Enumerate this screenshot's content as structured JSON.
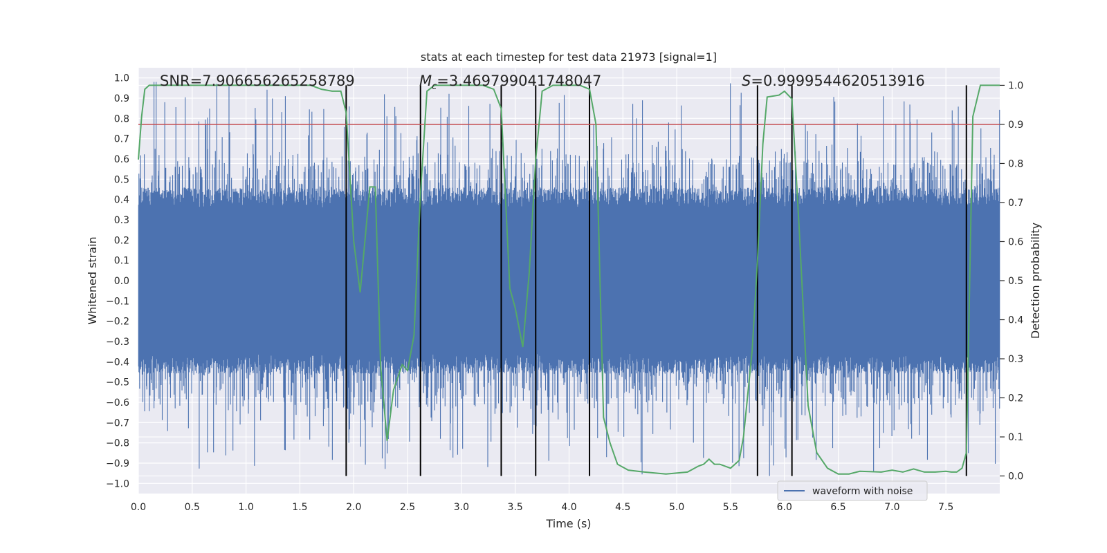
{
  "chart_data": {
    "type": "line",
    "title": "stats at each timestep for test data 21973 [signal=1]",
    "xlabel": "Time (s)",
    "ylabel": "Whitened strain",
    "y2label": "Detection probability",
    "xlim": [
      0.0,
      8.0
    ],
    "ylim": [
      -1.05,
      1.05
    ],
    "y2lim": [
      -0.045,
      1.045
    ],
    "xticks": [
      "0.0",
      "0.5",
      "1.0",
      "1.5",
      "2.0",
      "2.5",
      "3.0",
      "3.5",
      "4.0",
      "4.5",
      "5.0",
      "5.5",
      "6.0",
      "6.5",
      "7.0",
      "7.5"
    ],
    "xtick_values": [
      0.0,
      0.5,
      1.0,
      1.5,
      2.0,
      2.5,
      3.0,
      3.5,
      4.0,
      4.5,
      5.0,
      5.5,
      6.0,
      6.5,
      7.0,
      7.5
    ],
    "yticks": [
      "1.0",
      "0.9",
      "0.8",
      "0.7",
      "0.6",
      "0.5",
      "0.4",
      "0.3",
      "0.2",
      "0.1",
      "0.0",
      "−0.1",
      "−0.2",
      "−0.3",
      "−0.4",
      "−0.5",
      "−0.6",
      "−0.7",
      "−0.8",
      "−0.9",
      "−1.0"
    ],
    "ytick_values": [
      1.0,
      0.9,
      0.8,
      0.7,
      0.6,
      0.5,
      0.4,
      0.3,
      0.2,
      0.1,
      0.0,
      -0.1,
      -0.2,
      -0.3,
      -0.4,
      -0.5,
      -0.6,
      -0.7,
      -0.8,
      -0.9,
      -1.0
    ],
    "y2ticks": [
      "1.0",
      "0.9",
      "0.8",
      "0.7",
      "0.6",
      "0.5",
      "0.4",
      "0.3",
      "0.2",
      "0.1",
      "0.0"
    ],
    "y2tick_values": [
      1.0,
      0.9,
      0.8,
      0.7,
      0.6,
      0.5,
      0.4,
      0.3,
      0.2,
      0.1,
      0.0
    ],
    "annotations": {
      "snr": "SNR=7.906656265258789",
      "mc_symbol": "M",
      "mc_sub": "c",
      "mc_value": "=3.469799041748047",
      "s_symbol": "S",
      "s_value": "=0.9999544620513916"
    },
    "threshold": 0.9,
    "vlines": [
      1.93,
      2.62,
      3.37,
      3.69,
      4.19,
      5.75,
      6.07,
      7.69
    ],
    "series": [
      {
        "name": "waveform with noise",
        "color": "#4c72b0",
        "axis": "left",
        "kind": "noise",
        "base_amplitude": 0.36,
        "peak_amplitude": 0.9
      },
      {
        "name": "detection probability",
        "color": "#55a868",
        "axis": "right",
        "x": [
          0.0,
          0.03,
          0.06,
          0.1,
          0.2,
          0.4,
          0.8,
          1.2,
          1.6,
          1.7,
          1.8,
          1.88,
          1.93,
          2.0,
          2.06,
          2.15,
          2.2,
          2.25,
          2.31,
          2.37,
          2.45,
          2.5,
          2.56,
          2.62,
          2.68,
          2.75,
          2.85,
          3.0,
          3.2,
          3.3,
          3.37,
          3.45,
          3.5,
          3.57,
          3.63,
          3.69,
          3.75,
          3.85,
          4.0,
          4.1,
          4.19,
          4.25,
          4.32,
          4.38,
          4.45,
          4.55,
          4.7,
          4.9,
          5.1,
          5.2,
          5.25,
          5.3,
          5.35,
          5.4,
          5.5,
          5.58,
          5.62,
          5.7,
          5.75,
          5.8,
          5.84,
          5.95,
          6.0,
          6.07,
          6.14,
          6.22,
          6.3,
          6.4,
          6.5,
          6.6,
          6.7,
          6.9,
          7.0,
          7.1,
          7.2,
          7.3,
          7.4,
          7.5,
          7.55,
          7.6,
          7.65,
          7.69,
          7.75,
          7.82,
          7.88,
          8.0
        ],
        "values": [
          0.81,
          0.92,
          0.99,
          1.0,
          1.0,
          1.0,
          1.0,
          1.0,
          1.0,
          0.99,
          0.985,
          0.985,
          0.93,
          0.6,
          0.47,
          0.74,
          0.74,
          0.28,
          0.09,
          0.22,
          0.285,
          0.27,
          0.36,
          0.72,
          0.985,
          1.0,
          1.0,
          1.0,
          1.0,
          0.99,
          0.94,
          0.48,
          0.43,
          0.33,
          0.52,
          0.81,
          0.985,
          1.0,
          1.0,
          1.0,
          0.99,
          0.9,
          0.15,
          0.085,
          0.03,
          0.015,
          0.01,
          0.005,
          0.01,
          0.025,
          0.03,
          0.043,
          0.03,
          0.03,
          0.02,
          0.04,
          0.1,
          0.32,
          0.55,
          0.85,
          0.97,
          0.975,
          0.985,
          0.965,
          0.62,
          0.18,
          0.06,
          0.02,
          0.005,
          0.005,
          0.012,
          0.01,
          0.015,
          0.01,
          0.018,
          0.01,
          0.01,
          0.012,
          0.01,
          0.01,
          0.02,
          0.06,
          0.92,
          1.0,
          1.0,
          1.0
        ]
      }
    ],
    "legend": {
      "label": "waveform with noise",
      "placement": "lower-right"
    }
  },
  "colors": {
    "background": "#eaeaf2",
    "grid": "#ffffff",
    "waveform": "#4c72b0",
    "probability": "#55a868",
    "threshold": "#c44e52",
    "vline": "#000000"
  }
}
